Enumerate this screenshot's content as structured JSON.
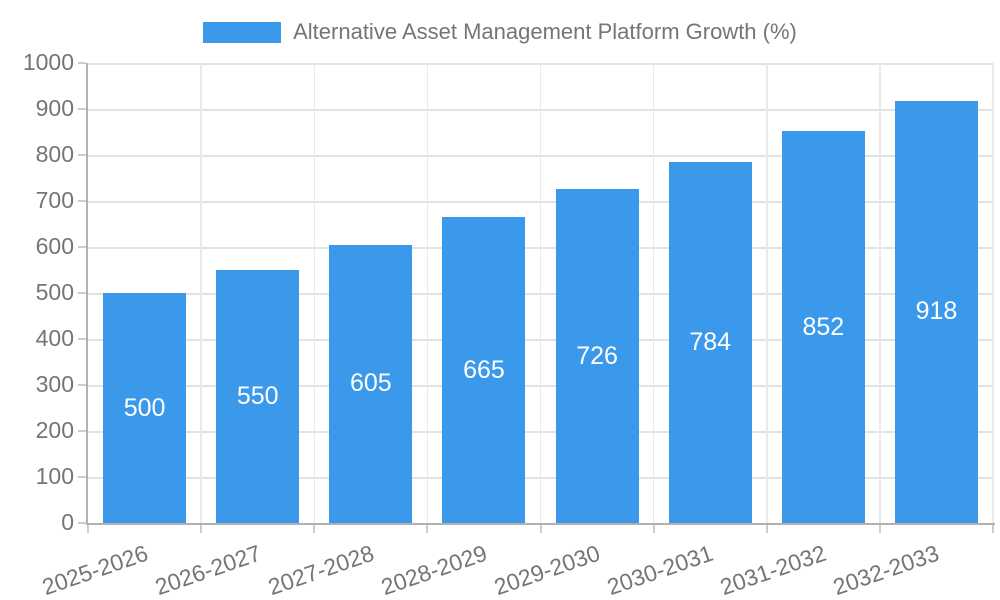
{
  "chart_data": {
    "type": "bar",
    "title": "Alternative Asset Management Platform Growth (%)",
    "categories": [
      "2025-2026",
      "2026-2027",
      "2027-2028",
      "2028-2029",
      "2029-2030",
      "2030-2031",
      "2031-2032",
      "2032-2033"
    ],
    "series": [
      {
        "name": "Alternative Asset Management Platform Growth (%)",
        "values": [
          500,
          550,
          605,
          665,
          726,
          784,
          852,
          918
        ]
      }
    ],
    "xlabel": "",
    "ylabel": "",
    "ylim": [
      0,
      1000
    ],
    "yticks": [
      0,
      100,
      200,
      300,
      400,
      500,
      600,
      700,
      800,
      900,
      1000
    ],
    "grid": true,
    "legend_position": "top",
    "bar_labels_inside": true,
    "colors": {
      "bar": "#3b99ec",
      "bar_label": "#ffffff",
      "axis_text": "#757575",
      "grid_h": "#e2e2e2",
      "grid_v": "#e9e9e9",
      "axis_line": "#b1b1b1",
      "tick": "#cccccc",
      "background": "#ffffff"
    }
  }
}
